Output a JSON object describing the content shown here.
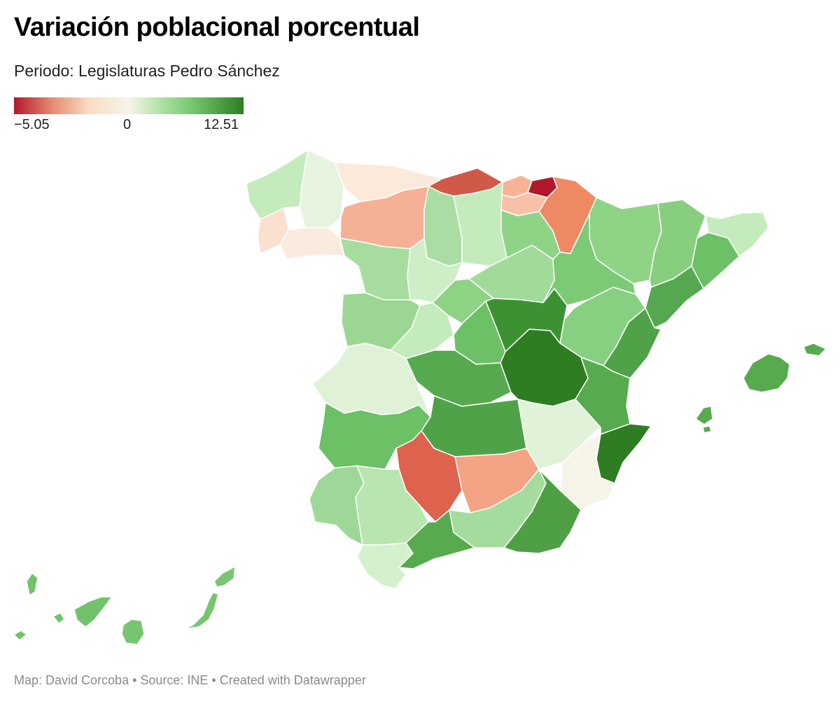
{
  "title": "Variación poblacional porcentual",
  "subtitle": "Periodo: Legislaturas Pedro Sánchez",
  "legend": {
    "min_label": "−5.05",
    "mid_label": "0",
    "max_label": "12.51",
    "min_value": -5.05,
    "max_value": 12.51,
    "colors": [
      "#b2182b",
      "#e58e73",
      "#f8ddc6",
      "#f7f4e8",
      "#b8e5b0",
      "#6cc066",
      "#2e7d22"
    ]
  },
  "footer": "Map: David Corcoba • Source: INE • Created with Datawrapper",
  "map_data": {
    "type": "choropleth",
    "regions": [
      {
        "name": "A Coruña",
        "color": "#c4ebbc"
      },
      {
        "name": "Lugo",
        "color": "#fbe0cf"
      },
      {
        "name": "Pontevedra",
        "color": "#e6f3df"
      },
      {
        "name": "Ourense",
        "color": "#faebdf"
      },
      {
        "name": "Asturias",
        "color": "#fbeadc"
      },
      {
        "name": "León",
        "color": "#d05a48"
      },
      {
        "name": "Palencia",
        "color": "#f7b495"
      },
      {
        "name": "Zamora",
        "color": "#b2182b"
      },
      {
        "name": "Salamanca",
        "color": "#f8c0a7"
      },
      {
        "name": "Cáceres",
        "color": "#ee8964"
      },
      {
        "name": "Badajoz",
        "color": "#f5b096"
      },
      {
        "name": "Cantabria",
        "color": "#aadda3"
      },
      {
        "name": "Burgos",
        "color": "#c4ebbc"
      },
      {
        "name": "Valladolid",
        "color": "#a6dd9e"
      },
      {
        "name": "Ávila",
        "color": "#cdeec6"
      },
      {
        "name": "Segovia",
        "color": "#9bd792"
      },
      {
        "name": "Soria",
        "color": "#c4ebbc"
      },
      {
        "name": "La Rioja",
        "color": "#8ed286"
      },
      {
        "name": "Bizkaia",
        "color": "#a1db9a"
      },
      {
        "name": "Gipuzkoa",
        "color": "#8fd387"
      },
      {
        "name": "Álava",
        "color": "#8fd387"
      },
      {
        "name": "Navarra",
        "color": "#7cca75"
      },
      {
        "name": "Huesca",
        "color": "#88d081"
      },
      {
        "name": "Zaragoza",
        "color": "#87cf7f"
      },
      {
        "name": "Teruel",
        "color": "#c4ebbc"
      },
      {
        "name": "Lleida",
        "color": "#6cc066"
      },
      {
        "name": "Girona",
        "color": "#55a84f"
      },
      {
        "name": "Barcelona",
        "color": "#6cc066"
      },
      {
        "name": "Tarragona",
        "color": "#3c9233"
      },
      {
        "name": "Madrid",
        "color": "#57a94f"
      },
      {
        "name": "Guadalajara",
        "color": "#2e7d22"
      },
      {
        "name": "Toledo",
        "color": "#4fa248"
      },
      {
        "name": "Cuenca",
        "color": "#e0f3d8"
      },
      {
        "name": "Castellón",
        "color": "#4fa248"
      },
      {
        "name": "Valencia",
        "color": "#57ab4e"
      },
      {
        "name": "Alicante",
        "color": "#2e7d22"
      },
      {
        "name": "Ciudad Real",
        "color": "#f6f4e8"
      },
      {
        "name": "Albacete",
        "color": "#dff2d8"
      },
      {
        "name": "Murcia",
        "color": "#6cc066"
      },
      {
        "name": "Jaén",
        "color": "#dd634e"
      },
      {
        "name": "Córdoba",
        "color": "#f4a484"
      },
      {
        "name": "Huelva",
        "color": "#9ed898"
      },
      {
        "name": "Sevilla",
        "color": "#b8e5b0"
      },
      {
        "name": "Cádiz",
        "color": "#d4f0cd"
      },
      {
        "name": "Málaga",
        "color": "#57ab4e"
      },
      {
        "name": "Granada",
        "color": "#a3dc9c"
      },
      {
        "name": "Almería",
        "color": "#4f9f45"
      },
      {
        "name": "Illes Balears",
        "color": "#57ab4e"
      },
      {
        "name": "Santa Cruz de Tenerife",
        "color": "#72c26c"
      },
      {
        "name": "Las Palmas",
        "color": "#78c571"
      }
    ]
  }
}
